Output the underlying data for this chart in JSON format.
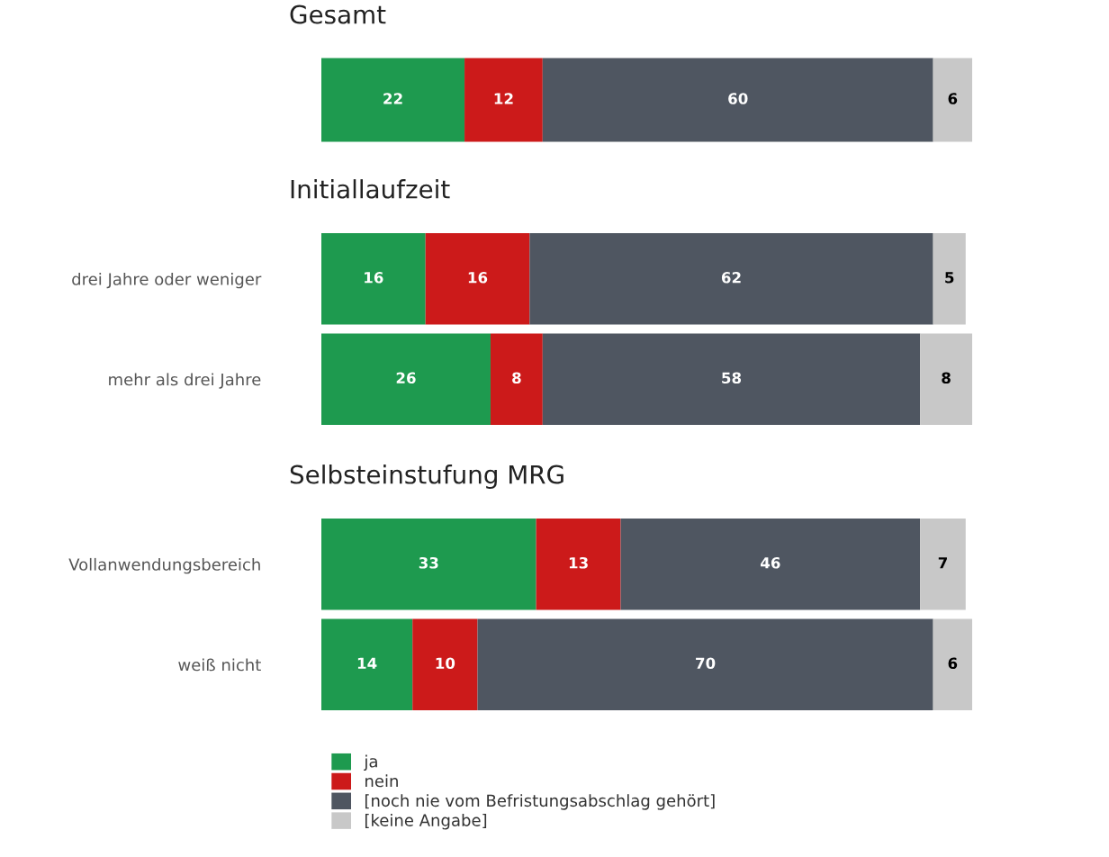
{
  "chart_data": [
    {
      "type": "bar",
      "title": "Gesamt",
      "orientation": "horizontal",
      "stacked": true,
      "data_labels": true,
      "grid": false,
      "legend": false,
      "tick_labels": "y",
      "categories": [
        null
      ],
      "series": [
        {
          "color": "#1e9a4f",
          "values": [
            22
          ]
        },
        {
          "color": "#cc1a1a",
          "values": [
            12
          ]
        },
        {
          "color": "#4f5661",
          "values": [
            60
          ]
        },
        {
          "color": "#c8c8c8",
          "values": [
            6
          ]
        }
      ]
    },
    {
      "type": "bar",
      "title": "Initiallaufzeit",
      "orientation": "horizontal",
      "stacked": true,
      "data_labels": true,
      "grid": false,
      "legend": false,
      "tick_labels": "y",
      "categories": [
        "drei Jahre oder weniger",
        "mehr als drei Jahre"
      ],
      "series": [
        {
          "color": "#1e9a4f",
          "values": [
            16,
            26
          ]
        },
        {
          "color": "#cc1a1a",
          "values": [
            16,
            8
          ]
        },
        {
          "color": "#4f5661",
          "values": [
            62,
            58
          ]
        },
        {
          "color": "#c8c8c8",
          "values": [
            5,
            8
          ]
        }
      ]
    },
    {
      "type": "bar",
      "title": "Selbsteinstufung MRG",
      "orientation": "horizontal",
      "stacked": true,
      "data_labels": true,
      "grid": false,
      "legend": "bottom",
      "tick_labels": "y",
      "categories": [
        "Vollanwendungsbereich",
        "weiß nicht"
      ],
      "series": [
        {
          "name": "ja",
          "color": "#1e9a4f",
          "values": [
            33,
            14
          ]
        },
        {
          "name": "nein",
          "color": "#cc1a1a",
          "values": [
            13,
            10
          ]
        },
        {
          "name": "[noch nie vom Befristungsabschlag gehört]",
          "color": "#4f5661",
          "values": [
            46,
            70
          ]
        },
        {
          "name": "[keine Angabe]",
          "color": "#c8c8c8",
          "values": [
            7,
            6
          ]
        }
      ]
    }
  ]
}
